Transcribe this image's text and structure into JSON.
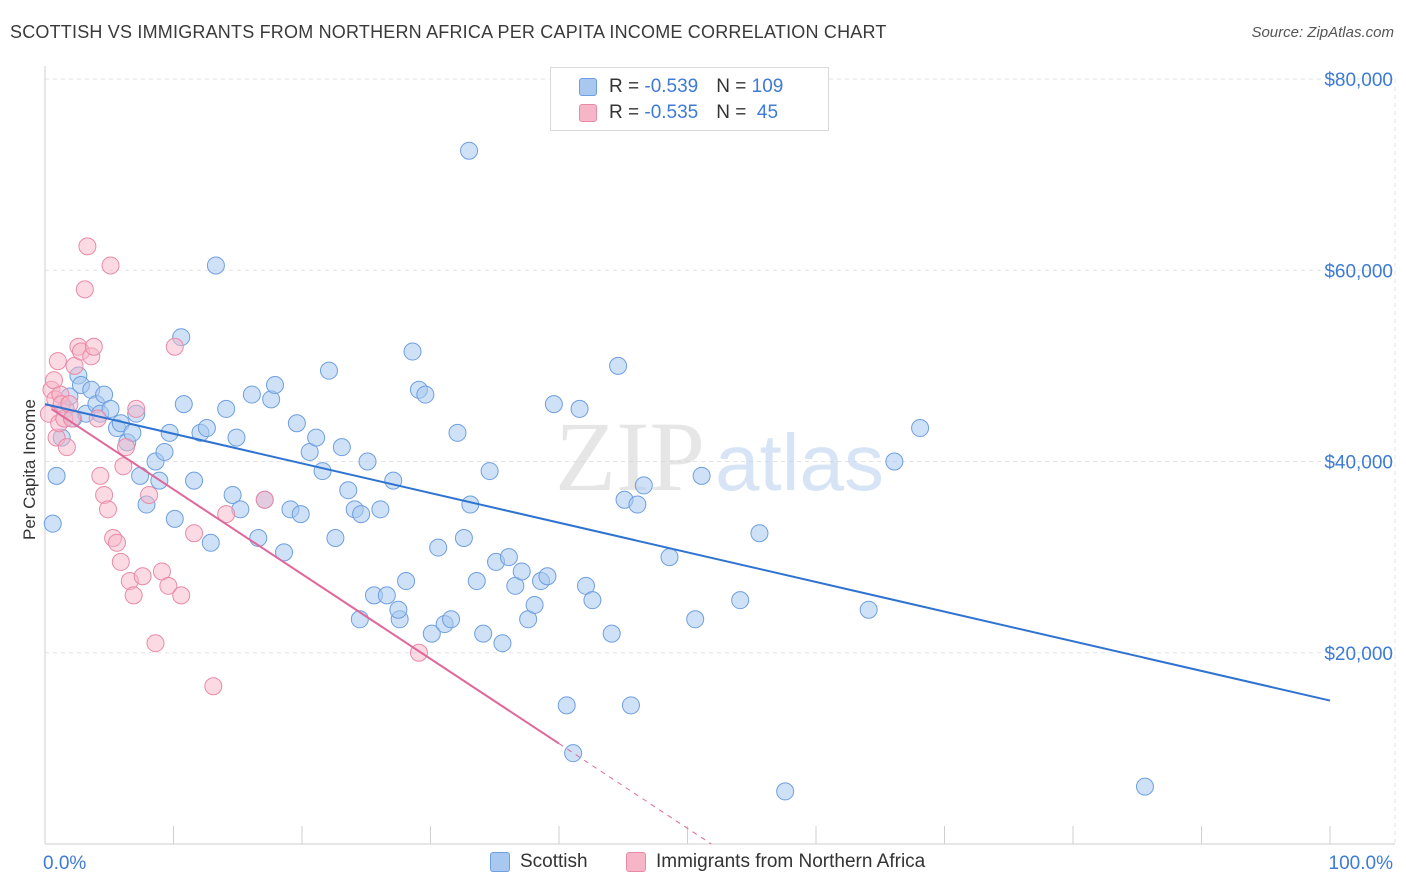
{
  "header": {
    "title": "SCOTTISH VS IMMIGRANTS FROM NORTHERN AFRICA PER CAPITA INCOME CORRELATION CHART",
    "source": "Source: ZipAtlas.com"
  },
  "watermark": {
    "zip": "ZIP",
    "atlas": "atlas"
  },
  "legend": {
    "rows": [
      {
        "r_label": "R = ",
        "r_value": "-0.539",
        "n_label": "N = ",
        "n_value": "109"
      },
      {
        "r_label": "R = ",
        "r_value": "-0.535",
        "n_label": "N = ",
        "n_value": " 45"
      }
    ]
  },
  "colors": {
    "scottish_fill": "#a8c8ef",
    "scottish_stroke": "#6e9fe0",
    "scottish_line": "#2f73d0",
    "immigrant_fill": "#f7b6c8",
    "immigrant_stroke": "#e98aa7",
    "immigrant_line": "#e0679a",
    "tick_label": "#3d7bd6",
    "grid": "#e3e3e3"
  },
  "chart_data": {
    "type": "scatter",
    "title": "SCOTTISH VS IMMIGRANTS FROM NORTHERN AFRICA PER CAPITA INCOME CORRELATION CHART",
    "xlabel": "",
    "ylabel": "Per Capita Income",
    "xlim": [
      0,
      100
    ],
    "ylim": [
      0,
      80000
    ],
    "x_tick_labels": [
      "0.0%",
      "100.0%"
    ],
    "y_ticks": [
      20000,
      40000,
      60000,
      80000
    ],
    "y_tick_labels": [
      "$20,000",
      "$40,000",
      "$60,000",
      "$80,000"
    ],
    "grid": true,
    "legend_position": "top-center",
    "series": [
      {
        "name": "Scottish",
        "color": "#a8c8ef",
        "trend": {
          "x": [
            0,
            100
          ],
          "y": [
            46000,
            15000
          ]
        },
        "points": [
          [
            0.6,
            33500
          ],
          [
            0.9,
            38500
          ],
          [
            1.3,
            42500
          ],
          [
            1.6,
            45500
          ],
          [
            1.9,
            46800
          ],
          [
            2.2,
            44500
          ],
          [
            2.6,
            49000
          ],
          [
            2.8,
            48000
          ],
          [
            3.2,
            45000
          ],
          [
            3.6,
            47500
          ],
          [
            4.0,
            46000
          ],
          [
            4.3,
            45000
          ],
          [
            4.6,
            47000
          ],
          [
            5.1,
            45500
          ],
          [
            5.6,
            43500
          ],
          [
            5.9,
            44000
          ],
          [
            6.4,
            42000
          ],
          [
            6.8,
            43000
          ],
          [
            7.1,
            45000
          ],
          [
            7.4,
            38500
          ],
          [
            7.9,
            35500
          ],
          [
            8.6,
            40000
          ],
          [
            8.9,
            38000
          ],
          [
            9.3,
            41000
          ],
          [
            9.7,
            43000
          ],
          [
            10.1,
            34000
          ],
          [
            10.6,
            53000
          ],
          [
            10.8,
            46000
          ],
          [
            11.6,
            38000
          ],
          [
            12.1,
            43000
          ],
          [
            12.6,
            43500
          ],
          [
            12.9,
            31500
          ],
          [
            13.3,
            60500
          ],
          [
            14.1,
            45500
          ],
          [
            14.6,
            36500
          ],
          [
            14.9,
            42500
          ],
          [
            15.2,
            35000
          ],
          [
            16.1,
            47000
          ],
          [
            16.6,
            32000
          ],
          [
            17.1,
            36000
          ],
          [
            17.6,
            46500
          ],
          [
            17.9,
            48000
          ],
          [
            18.6,
            30500
          ],
          [
            19.1,
            35000
          ],
          [
            19.6,
            44000
          ],
          [
            19.9,
            34500
          ],
          [
            20.6,
            41000
          ],
          [
            21.1,
            42500
          ],
          [
            21.6,
            39000
          ],
          [
            22.1,
            49500
          ],
          [
            22.6,
            32000
          ],
          [
            23.1,
            41500
          ],
          [
            23.6,
            37000
          ],
          [
            24.1,
            35000
          ],
          [
            24.6,
            34500
          ],
          [
            25.1,
            40000
          ],
          [
            25.6,
            26000
          ],
          [
            26.1,
            35000
          ],
          [
            26.6,
            26000
          ],
          [
            27.1,
            38000
          ],
          [
            27.6,
            23500
          ],
          [
            28.1,
            27500
          ],
          [
            28.6,
            51500
          ],
          [
            29.1,
            47500
          ],
          [
            29.6,
            47000
          ],
          [
            30.1,
            22000
          ],
          [
            30.6,
            31000
          ],
          [
            31.1,
            23000
          ],
          [
            31.6,
            23500
          ],
          [
            32.1,
            43000
          ],
          [
            32.6,
            32000
          ],
          [
            33.1,
            35500
          ],
          [
            33.6,
            27500
          ],
          [
            34.1,
            22000
          ],
          [
            34.6,
            39000
          ],
          [
            35.1,
            29500
          ],
          [
            35.6,
            21000
          ],
          [
            36.1,
            30000
          ],
          [
            36.6,
            27000
          ],
          [
            37.1,
            28500
          ],
          [
            37.6,
            23500
          ],
          [
            38.1,
            25000
          ],
          [
            38.6,
            27500
          ],
          [
            39.1,
            28000
          ],
          [
            39.6,
            46000
          ],
          [
            40.6,
            14500
          ],
          [
            41.1,
            9500
          ],
          [
            41.6,
            45500
          ],
          [
            42.1,
            27000
          ],
          [
            42.6,
            25500
          ],
          [
            44.1,
            22000
          ],
          [
            44.6,
            50000
          ],
          [
            45.1,
            36000
          ],
          [
            45.6,
            14500
          ],
          [
            46.1,
            35500
          ],
          [
            46.6,
            37500
          ],
          [
            48.6,
            30000
          ],
          [
            50.6,
            23500
          ],
          [
            51.1,
            38500
          ],
          [
            54.1,
            25500
          ],
          [
            55.6,
            32500
          ],
          [
            57.6,
            5500
          ],
          [
            64.1,
            24500
          ],
          [
            66.1,
            40000
          ],
          [
            68.1,
            43500
          ],
          [
            85.6,
            6000
          ],
          [
            33.0,
            72500
          ],
          [
            27.5,
            24500
          ],
          [
            24.5,
            23500
          ]
        ]
      },
      {
        "name": "Immigrants from Northern Africa",
        "color": "#f7b6c8",
        "trend": {
          "x": [
            0.5,
            40
          ],
          "y": [
            45500,
            10500
          ]
        },
        "points": [
          [
            0.3,
            45000
          ],
          [
            0.5,
            47500
          ],
          [
            0.7,
            48500
          ],
          [
            0.8,
            46500
          ],
          [
            0.9,
            42500
          ],
          [
            1.0,
            50500
          ],
          [
            1.1,
            44000
          ],
          [
            1.2,
            47000
          ],
          [
            1.3,
            46000
          ],
          [
            1.5,
            44500
          ],
          [
            1.7,
            41500
          ],
          [
            1.9,
            46000
          ],
          [
            2.1,
            44500
          ],
          [
            2.3,
            50000
          ],
          [
            2.6,
            52000
          ],
          [
            2.8,
            51500
          ],
          [
            3.1,
            58000
          ],
          [
            3.3,
            62500
          ],
          [
            3.6,
            51000
          ],
          [
            3.8,
            52000
          ],
          [
            4.1,
            44500
          ],
          [
            4.3,
            38500
          ],
          [
            4.6,
            36500
          ],
          [
            4.9,
            35000
          ],
          [
            5.1,
            60500
          ],
          [
            5.3,
            32000
          ],
          [
            5.6,
            31500
          ],
          [
            5.9,
            29500
          ],
          [
            6.1,
            39500
          ],
          [
            6.3,
            41500
          ],
          [
            6.6,
            27500
          ],
          [
            6.9,
            26000
          ],
          [
            7.1,
            45500
          ],
          [
            7.6,
            28000
          ],
          [
            8.1,
            36500
          ],
          [
            8.6,
            21000
          ],
          [
            9.1,
            28500
          ],
          [
            9.6,
            27000
          ],
          [
            10.1,
            52000
          ],
          [
            10.6,
            26000
          ],
          [
            11.6,
            32500
          ],
          [
            13.1,
            16500
          ],
          [
            14.1,
            34500
          ],
          [
            17.1,
            36000
          ],
          [
            29.1,
            20000
          ]
        ]
      }
    ]
  },
  "bottom_legend": {
    "items": [
      {
        "label": "Scottish"
      },
      {
        "label": "Immigrants from Northern Africa"
      }
    ]
  }
}
